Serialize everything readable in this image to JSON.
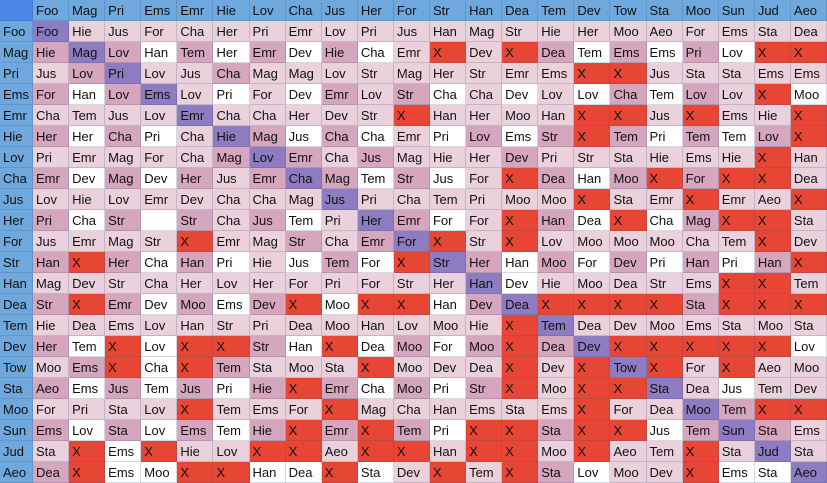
{
  "table": {
    "corner_label": "",
    "column_headers": [
      "Foo",
      "Mag",
      "Pri",
      "Ems",
      "Emr",
      "Hie",
      "Lov",
      "Cha",
      "Jus",
      "Her",
      "For",
      "Str",
      "Han",
      "Dea",
      "Tem",
      "Dev",
      "Tow",
      "Sta",
      "Moo",
      "Sun",
      "Jud",
      "Aeo"
    ],
    "rows": [
      {
        "header": "Foo",
        "cells": [
          "Foo",
          "Hie",
          "Jus",
          "For",
          "Cha",
          "Her",
          "Pri",
          "Emr",
          "Lov",
          "Pri",
          "Jus",
          "Han",
          "Mag",
          "Str",
          "Hie",
          "Her",
          "Moo",
          "Aeo",
          "For",
          "Ems",
          "Sta",
          "Dea"
        ]
      },
      {
        "header": "Mag",
        "cells": [
          "Hie",
          "Mag",
          "Lov",
          "Han",
          "Tem",
          "Her",
          "Emr",
          "Dev",
          "Hie",
          "Cha",
          "Emr",
          "X",
          "Dev",
          "X",
          "Dea",
          "Tem",
          "Ems",
          "Ems",
          "Pri",
          "Lov",
          "X",
          "X"
        ]
      },
      {
        "header": "Pri",
        "cells": [
          "Jus",
          "Lov",
          "Pri",
          "Lov",
          "Jus",
          "Cha",
          "Mag",
          "Mag",
          "Lov",
          "Str",
          "Mag",
          "Her",
          "Str",
          "Emr",
          "Ems",
          "X",
          "X",
          "Jus",
          "Sta",
          "Sta",
          "Ems",
          "Ems"
        ]
      },
      {
        "header": "Ems",
        "cells": [
          "For",
          "Han",
          "Lov",
          "Ems",
          "Lov",
          "Pri",
          "For",
          "Dev",
          "Emr",
          "Lov",
          "Str",
          "Cha",
          "Cha",
          "Dev",
          "Lov",
          "Lov",
          "Cha",
          "Tem",
          "Lov",
          "Lov",
          "X",
          "Moo"
        ]
      },
      {
        "header": "Emr",
        "cells": [
          "Cha",
          "Tem",
          "Jus",
          "Lov",
          "Emr",
          "Cha",
          "Cha",
          "Her",
          "Dev",
          "Str",
          "X",
          "Han",
          "Her",
          "Moo",
          "Han",
          "X",
          "X",
          "Jus",
          "X",
          "Ems",
          "Hie",
          "X"
        ]
      },
      {
        "header": "Hie",
        "cells": [
          "Her",
          "Her",
          "Cha",
          "Pri",
          "Cha",
          "Hie",
          "Mag",
          "Jus",
          "Cha",
          "Cha",
          "Emr",
          "Pri",
          "Lov",
          "Ems",
          "Str",
          "X",
          "Tem",
          "Pri",
          "Tem",
          "Tem",
          "Lov",
          "X"
        ]
      },
      {
        "header": "Lov",
        "cells": [
          "Pri",
          "Emr",
          "Mag",
          "For",
          "Cha",
          "Mag",
          "Lov",
          "Emr",
          "Cha",
          "Jus",
          "Mag",
          "Hie",
          "Her",
          "Dev",
          "Pri",
          "Str",
          "Sta",
          "Hie",
          "Ems",
          "Hie",
          "X",
          "Han"
        ]
      },
      {
        "header": "Cha",
        "cells": [
          "Emr",
          "Dev",
          "Mag",
          "Dev",
          "Her",
          "Jus",
          "Emr",
          "Cha",
          "Mag",
          "Tem",
          "Str",
          "Jus",
          "For",
          "X",
          "Dea",
          "Han",
          "Moo",
          "X",
          "For",
          "X",
          "X",
          "Dea"
        ]
      },
      {
        "header": "Jus",
        "cells": [
          "Lov",
          "Hie",
          "Lov",
          "Emr",
          "Dev",
          "Cha",
          "Cha",
          "Mag",
          "Jus",
          "Pri",
          "Cha",
          "Tem",
          "Pri",
          "Moo",
          "Moo",
          "X",
          "Sta",
          "Emr",
          "X",
          "Emr",
          "Aeo",
          "X"
        ]
      },
      {
        "header": "Her",
        "cells": [
          "Pri",
          "Cha",
          "Str",
          "",
          "Str",
          "Cha",
          "Jus",
          "Tem",
          "Pri",
          "Her",
          "Emr",
          "For",
          "For",
          "X",
          "Han",
          "Dea",
          "X",
          "Cha",
          "Mag",
          "X",
          "X",
          "Sta"
        ]
      },
      {
        "header": "For",
        "cells": [
          "Jus",
          "Emr",
          "Mag",
          "Str",
          "X",
          "Emr",
          "Mag",
          "Str",
          "Cha",
          "Emr",
          "For",
          "X",
          "Str",
          "X",
          "Lov",
          "Moo",
          "Moo",
          "Moo",
          "Cha",
          "Tem",
          "X",
          "Dev"
        ]
      },
      {
        "header": "Str",
        "cells": [
          "Han",
          "X",
          "Her",
          "Cha",
          "Han",
          "Pri",
          "Hie",
          "Jus",
          "Tem",
          "For",
          "X",
          "Str",
          "Her",
          "Han",
          "Moo",
          "For",
          "Dev",
          "Pri",
          "Han",
          "Pri",
          "Han",
          "X"
        ]
      },
      {
        "header": "Han",
        "cells": [
          "Mag",
          "Dev",
          "Str",
          "Cha",
          "Her",
          "Lov",
          "Her",
          "For",
          "Pri",
          "For",
          "Str",
          "Her",
          "Han",
          "Dev",
          "Hie",
          "Moo",
          "Dea",
          "Str",
          "Ems",
          "X",
          "X",
          "Tem"
        ]
      },
      {
        "header": "Dea",
        "cells": [
          "Str",
          "X",
          "Emr",
          "Dev",
          "Moo",
          "Ems",
          "Dev",
          "X",
          "Moo",
          "X",
          "X",
          "Han",
          "Dev",
          "Dea",
          "X",
          "X",
          "X",
          "X",
          "Sta",
          "X",
          "X",
          "X"
        ]
      },
      {
        "header": "Tem",
        "cells": [
          "Hie",
          "Dea",
          "Ems",
          "Lov",
          "Han",
          "Str",
          "Pri",
          "Dea",
          "Moo",
          "Han",
          "Lov",
          "Moo",
          "Hie",
          "X",
          "Tem",
          "Dea",
          "Dev",
          "Moo",
          "Ems",
          "Sta",
          "Moo",
          "Sta"
        ]
      },
      {
        "header": "Dev",
        "cells": [
          "Her",
          "Tem",
          "X",
          "Lov",
          "X",
          "X",
          "Str",
          "Han",
          "X",
          "Dea",
          "Moo",
          "For",
          "Moo",
          "X",
          "Dea",
          "Dev",
          "X",
          "X",
          "X",
          "X",
          "X",
          "Lov"
        ]
      },
      {
        "header": "Tow",
        "cells": [
          "Moo",
          "Ems",
          "X",
          "Cha",
          "X",
          "Tem",
          "Sta",
          "Moo",
          "Sta",
          "X",
          "Moo",
          "Dev",
          "Dea",
          "X",
          "Dev",
          "X",
          "Tow",
          "X",
          "For",
          "X",
          "Aeo",
          "Moo"
        ]
      },
      {
        "header": "Sta",
        "cells": [
          "Aeo",
          "Ems",
          "Jus",
          "Tem",
          "Jus",
          "Pri",
          "Hie",
          "X",
          "Emr",
          "Cha",
          "Moo",
          "Pri",
          "Str",
          "X",
          "Moo",
          "X",
          "X",
          "Sta",
          "Dea",
          "Jus",
          "Tem",
          "Dev"
        ]
      },
      {
        "header": "Moo",
        "cells": [
          "For",
          "Pri",
          "Sta",
          "Lov",
          "X",
          "Tem",
          "Ems",
          "For",
          "X",
          "Mag",
          "Cha",
          "Han",
          "Ems",
          "Sta",
          "Ems",
          "X",
          "For",
          "Dea",
          "Moo",
          "Tem",
          "X",
          "X"
        ]
      },
      {
        "header": "Sun",
        "cells": [
          "Ems",
          "Lov",
          "Sta",
          "Lov",
          "Ems",
          "Tem",
          "Hie",
          "X",
          "Emr",
          "X",
          "Tem",
          "Pri",
          "X",
          "X",
          "Sta",
          "X",
          "X",
          "Jus",
          "Tem",
          "Sun",
          "Sta",
          "Ems"
        ]
      },
      {
        "header": "Jud",
        "cells": [
          "Sta",
          "X",
          "Ems",
          "X",
          "Hie",
          "Lov",
          "X",
          "X",
          "Aeo",
          "X",
          "X",
          "Han",
          "X",
          "X",
          "Moo",
          "X",
          "Aeo",
          "Tem",
          "X",
          "Sta",
          "Jud",
          "Sta"
        ]
      },
      {
        "header": "Aeo",
        "cells": [
          "Dea",
          "X",
          "Ems",
          "Moo",
          "X",
          "X",
          "Han",
          "Dea",
          "X",
          "Sta",
          "Dev",
          "X",
          "Tem",
          "X",
          "Sta",
          "Lov",
          "Moo",
          "Dev",
          "X",
          "Ems",
          "Sta",
          "Aeo"
        ]
      }
    ],
    "color_codes": [
      "dlllllllllllllllllllll",
      "mdmwmwmwmwlrlrmwmwmwrr",
      "lmdllmlllllllllrrlllll",
      "mwmdlwlwmlmwlwlwmwmlrw",
      "lllldlllllrllllrrlrllr",
      "mwmwldmwmwlwmwmrmwmwmr",
      "lllllmdmlmlllmllllllrl",
      "mwmwmlmdmwmwlrmwmrmrrl",
      "lllllllldllllllrllrllr",
      "mwmemlmwldmwlrmwrwmrrl",
      "llllrllmlmdrlrllllllrl",
      "mrmwmwlwmwrdmwmwmwmwmr",
      "lllllllllllldwlllllrrl",
      "mrmwmwmrwrrwmdrrrrmrrr",
      "lllllllllllllrdlllllll",
      "mwrwrrmwrwmwmrmdrrrrrw",
      "lmrwrmlllrlllrlrdrlrll",
      "mwmwmwmrmwmwmrlrrdlwll",
      "llllrlllrllllllrlldmrr",
      "mwmwmwmrmrmwrrmrrwmdml",
      "lrwrllrrlrrlrrlrllrldl",
      "mrwwrrwwrwlrlrmwllrwwd"
    ],
    "palette": {
      "corner_bg": "#4a86e8",
      "header_bg": "#6fa8dc",
      "diagonal_bg": "#8e7cc3",
      "light_pink_bg": "#ead1dc",
      "mauve_bg": "#d5a6bd",
      "red_bg": "#e74634",
      "white_bg": "#ffffff",
      "text_color": "#111111"
    }
  }
}
